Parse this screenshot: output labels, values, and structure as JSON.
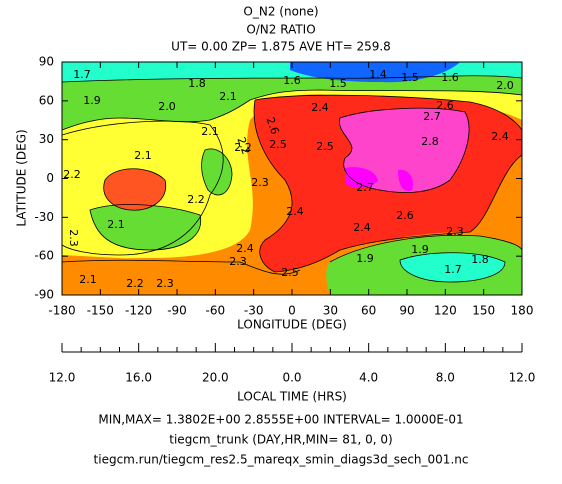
{
  "chart_data": {
    "type": "contour",
    "title": "O_N2 (none)",
    "subtitle": "O/N2 RATIO",
    "header": "UT= 0.00 ZP=  1.875 AVE HT= 259.8",
    "xlabel": "LONGITUDE (DEG)",
    "ylabel": "LATITUDE (DEG)",
    "xlim": [
      -180,
      180
    ],
    "xticks": [
      -180,
      -150,
      -120,
      -90,
      -60,
      -30,
      0,
      30,
      60,
      90,
      120,
      150,
      180
    ],
    "ylim": [
      -90,
      90
    ],
    "yticks": [
      -90,
      -60,
      -30,
      0,
      30,
      60,
      90
    ],
    "lt_label": "LOCAL TIME (HRS)",
    "lt_ticks": [
      "12.0",
      "16.0",
      "20.0",
      "0.0",
      "4.0",
      "8.0",
      "12.0"
    ],
    "contour_labels": [
      "1.7",
      "1.9",
      "1.8",
      "2.0",
      "2.1",
      "1.6",
      "1.5",
      "1.4",
      "1.5",
      "1.6",
      "2.0",
      "2.1",
      "2.2",
      "2.1",
      "2.2",
      "2.4",
      "2.5",
      "2.5",
      "2.6",
      "2.7",
      "2.8",
      "2.4",
      "2.3",
      "2.2",
      "2.1",
      "2.4",
      "2.7",
      "2.6",
      "2.4",
      "2.3",
      "2.4",
      "2.3",
      "2.5",
      "1.9",
      "1.9",
      "1.8",
      "1.7",
      "2.1",
      "2.2",
      "2.3",
      "2.3",
      "2.2",
      "2.6"
    ],
    "footer": [
      "MIN,MAX=  1.3802E+00  2.8555E+00 INTERVAL=  1.0000E-01",
      "tiegcm_trunk (DAY,HR,MIN= 81, 0, 0)",
      "tiegcm.run/tiegcm_res2.5_mareqx_smin_diags3d_sech_001.nc"
    ]
  }
}
